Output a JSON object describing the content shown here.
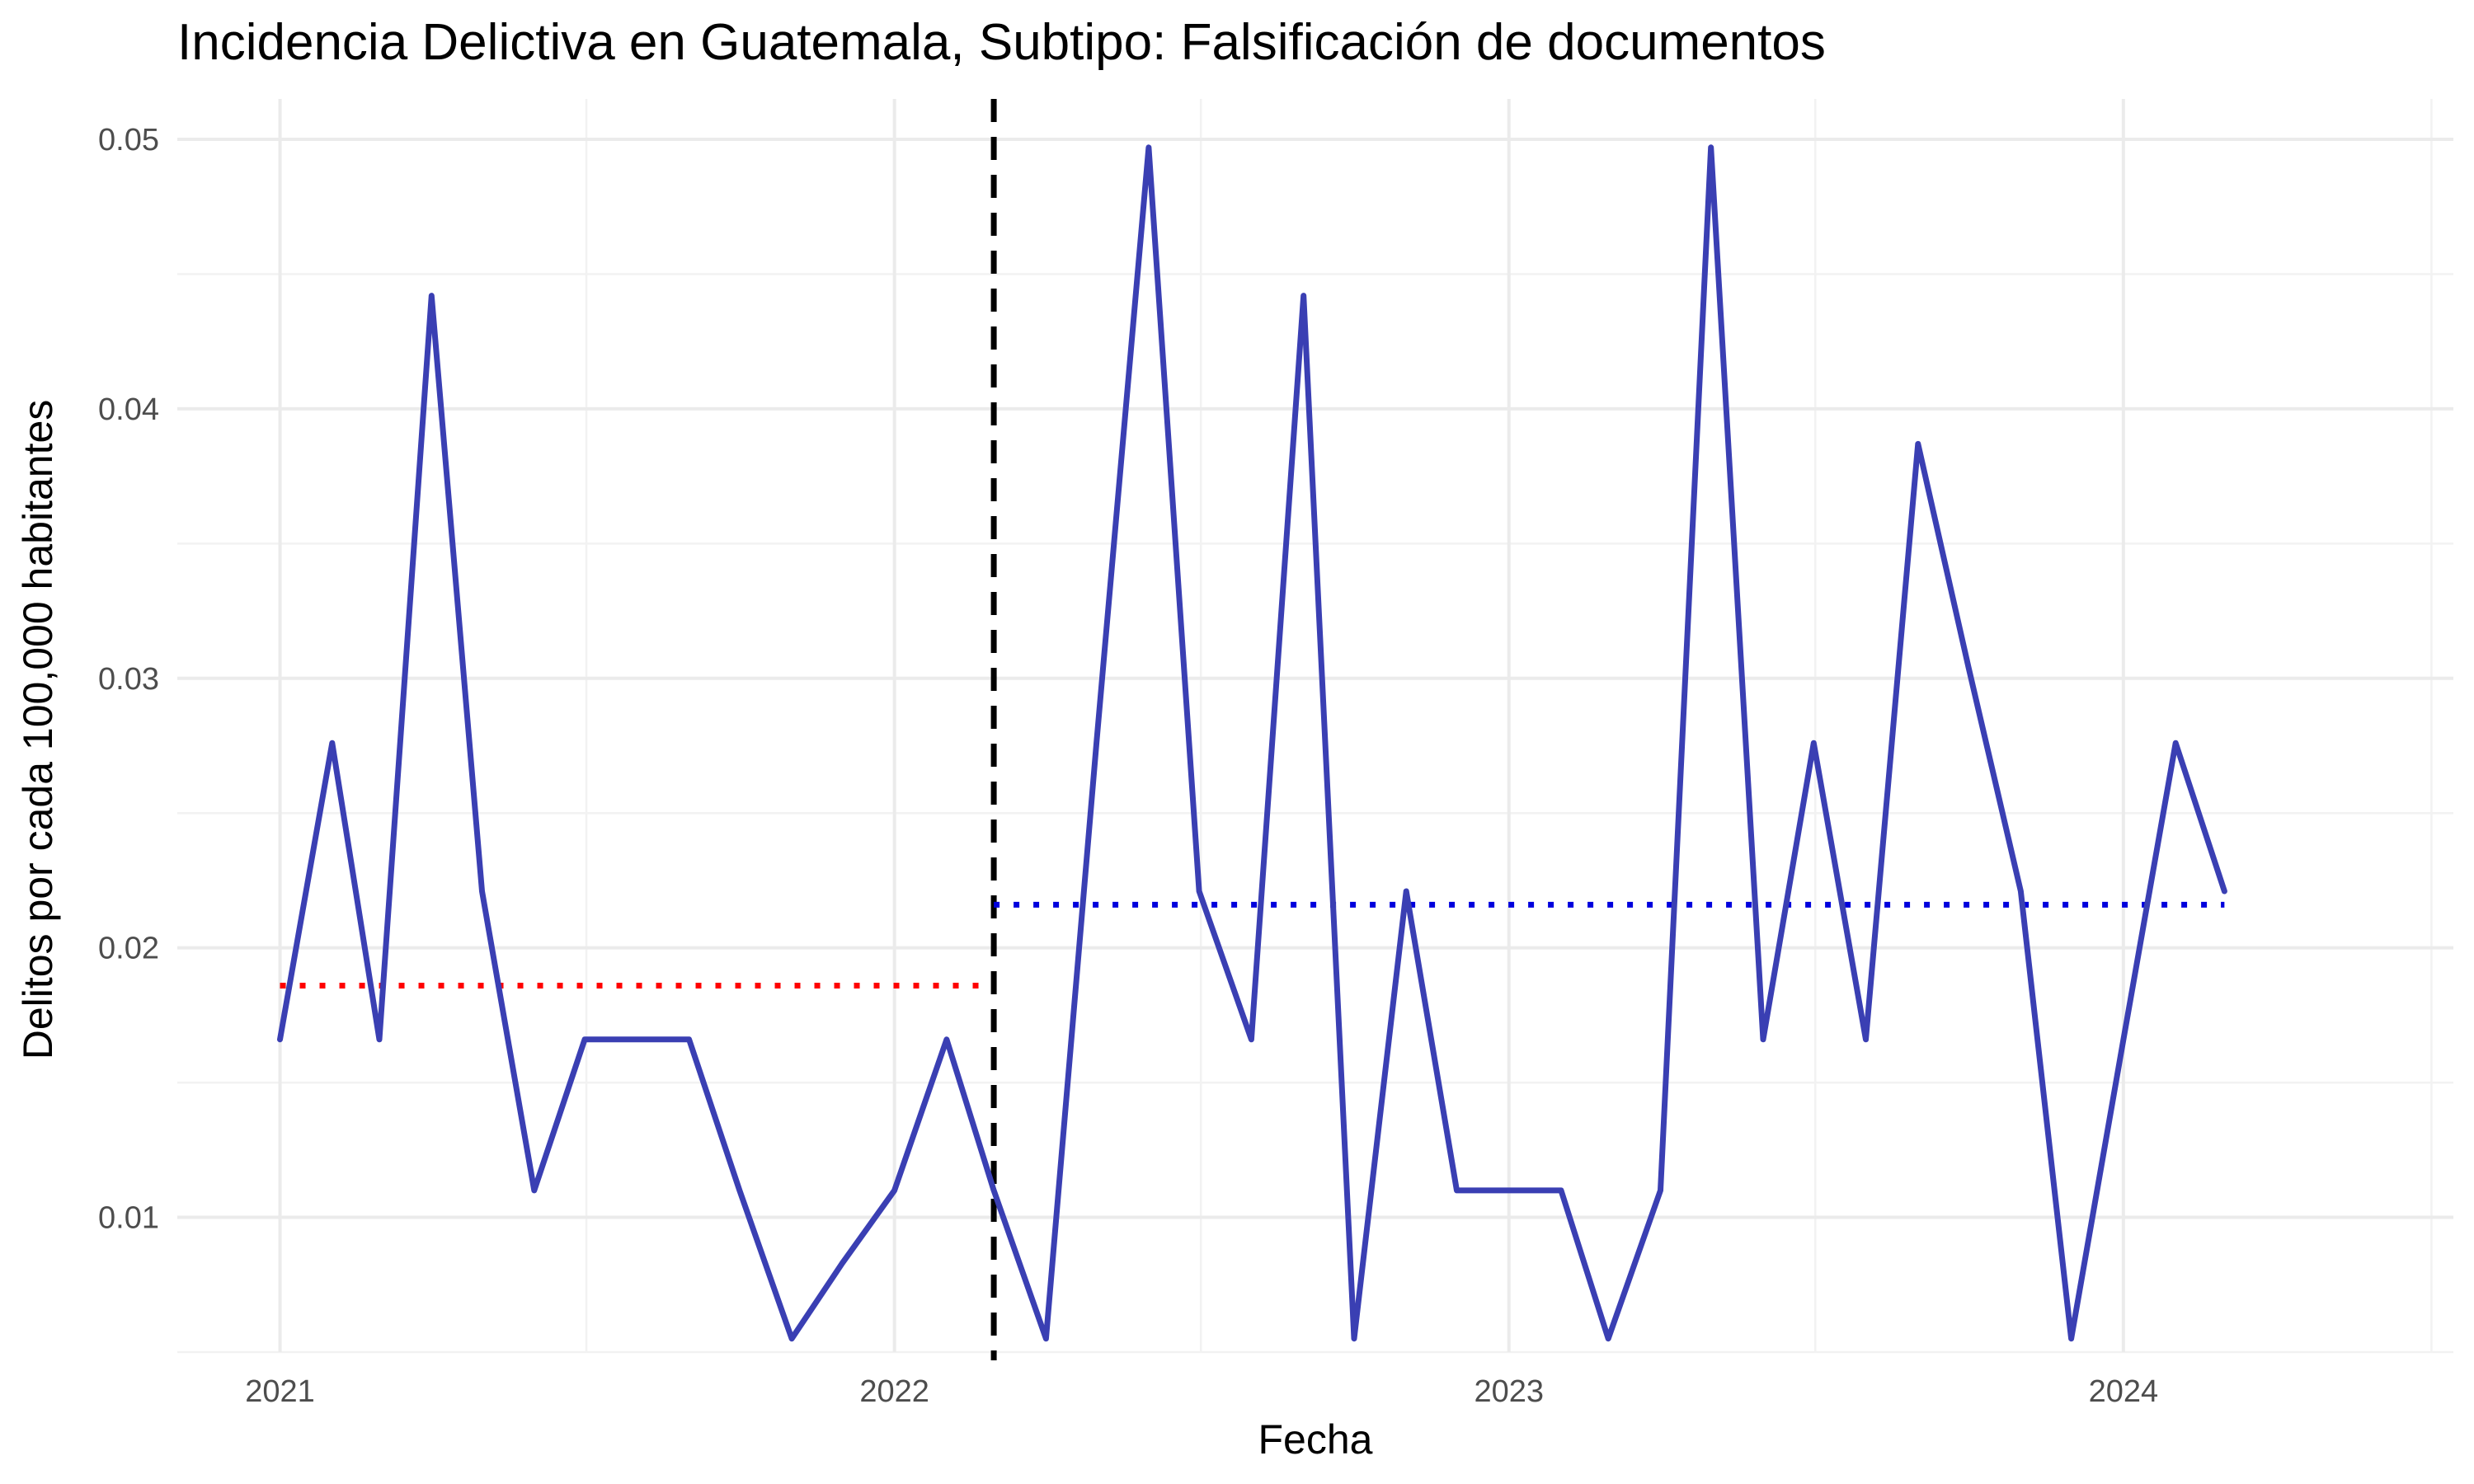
{
  "chart_data": {
    "type": "line",
    "title": "Incidencia Delictiva en Guatemala, Subtipo: Falsificación de documentos",
    "xlabel": "Fecha",
    "ylabel": "Delitos por cada 100,000 habitantes",
    "x_ticks": [
      "2021",
      "2022",
      "2023",
      "2024"
    ],
    "y_ticks": [
      "0.01",
      "0.02",
      "0.03",
      "0.04",
      "0.05"
    ],
    "xlim": [
      "2020-11-01",
      "2024-07-15"
    ],
    "ylim": [
      0.005,
      0.0515
    ],
    "grid": true,
    "legend": "none",
    "series": [
      {
        "color": "#3a3fb3",
        "points": [
          [
            "2021-01-01",
            0.0166
          ],
          [
            "2021-02-01",
            0.0276
          ],
          [
            "2021-03-01",
            0.0166
          ],
          [
            "2021-04-01",
            0.0442
          ],
          [
            "2021-05-01",
            0.0221
          ],
          [
            "2021-06-01",
            0.011
          ],
          [
            "2021-07-01",
            0.0166
          ],
          [
            "2021-08-01",
            0.0166
          ],
          [
            "2021-09-01",
            0.0166
          ],
          [
            "2021-10-01",
            0.011
          ],
          [
            "2021-11-01",
            0.0055
          ],
          [
            "2021-12-01",
            0.0083
          ],
          [
            "2022-01-01",
            0.011
          ],
          [
            "2022-02-01",
            0.0166
          ],
          [
            "2022-03-01",
            0.011
          ],
          [
            "2022-04-01",
            0.0055
          ],
          [
            "2022-05-01",
            0.0276
          ],
          [
            "2022-06-01",
            0.0497
          ],
          [
            "2022-07-01",
            0.0221
          ],
          [
            "2022-08-01",
            0.0166
          ],
          [
            "2022-09-01",
            0.0442
          ],
          [
            "2022-10-01",
            0.0055
          ],
          [
            "2022-11-01",
            0.0221
          ],
          [
            "2022-12-01",
            0.011
          ],
          [
            "2023-01-01",
            0.011
          ],
          [
            "2023-02-01",
            0.011
          ],
          [
            "2023-03-01",
            0.0055
          ],
          [
            "2023-04-01",
            0.011
          ],
          [
            "2023-05-01",
            0.0497
          ],
          [
            "2023-06-01",
            0.0166
          ],
          [
            "2023-07-01",
            0.0276
          ],
          [
            "2023-08-01",
            0.0166
          ],
          [
            "2023-09-01",
            0.0387
          ],
          [
            "2023-10-01",
            0.0304
          ],
          [
            "2023-11-01",
            0.0221
          ],
          [
            "2023-12-01",
            0.0055
          ],
          [
            "2024-01-01",
            0.0166
          ],
          [
            "2024-02-01",
            0.0276
          ],
          [
            "2024-03-01",
            0.0221
          ]
        ]
      }
    ],
    "reference_lines": [
      {
        "orientation": "vertical",
        "x": "2022-03-01",
        "style": "dashed",
        "color": "#000000"
      },
      {
        "orientation": "horizontal",
        "y": 0.0186,
        "x_start": "2021-01-01",
        "x_end": "2022-02-28",
        "style": "dotted",
        "color": "#ff0000"
      },
      {
        "orientation": "horizontal",
        "y": 0.0216,
        "x_start": "2022-03-01",
        "x_end": "2024-03-01",
        "style": "dotted",
        "color": "#0000dd"
      }
    ]
  }
}
